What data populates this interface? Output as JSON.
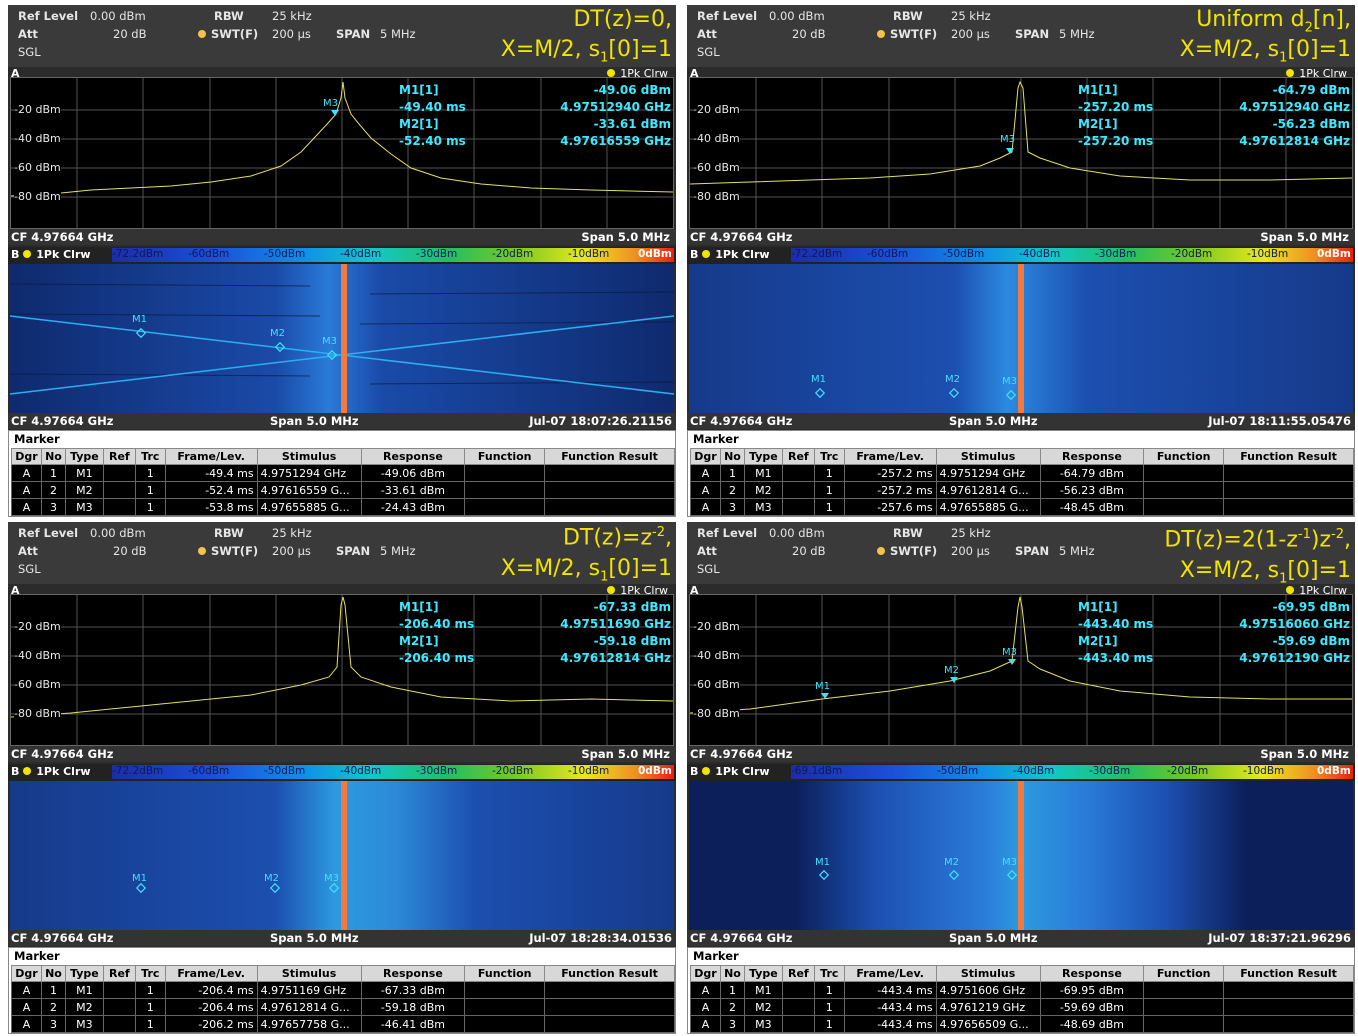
{
  "header": {
    "ref_level_label": "Ref Level",
    "ref_level_value": "0.00 dBm",
    "att_label": "Att",
    "att_value": "20 dB",
    "sgl_label": "SGL",
    "rbw_label": "RBW",
    "rbw_value": "25 kHz",
    "swt_label": "SWT(F)",
    "swt_value": "200 µs",
    "span_label": "SPAN",
    "span_value": "5 MHz"
  },
  "common": {
    "window_a": "A",
    "window_b": "B",
    "trace_label": "1Pk Clrw",
    "cf_label": "CF 4.97664 GHz",
    "span_label": "Span 5.0 MHz",
    "marker_table_title": "Marker",
    "y_labels": [
      "-20 dBm",
      "-40 dBm",
      "-60 dBm",
      "-80 dBm"
    ],
    "columns": [
      "Dgr",
      "No",
      "Type",
      "Ref",
      "Trc",
      "Frame/Lev.",
      "Stimulus",
      "Response",
      "Function",
      "Function Result"
    ]
  },
  "panels": [
    {
      "ann1": "DT(z)=0,",
      "ann2_pre": "X=M/2, s",
      "ann2_sub": "1",
      "ann2_post": "[0]=1",
      "m1_label": "M1[1]",
      "m1_time": "-49.40 ms",
      "m1_level": "-49.06 dBm",
      "m1_freq": "4.97512940 GHz",
      "m2_label": "M2[1]",
      "m2_time": "-52.40 ms",
      "m2_level": "-33.61 dBm",
      "m2_freq": "4.97616559 GHz",
      "color_scale": [
        "-72.2dBm",
        "-60dBm",
        "-50dBm",
        "-40dBm",
        "-30dBm",
        "-20dBm",
        "-10dBm",
        "0dBm"
      ],
      "timestamp": "Jul-07 18:07:26.21156",
      "rows": [
        [
          "A",
          "1",
          "M1",
          "",
          "1",
          "-49.4 ms",
          "4.9751294 GHz",
          "-49.06 dBm",
          "",
          ""
        ],
        [
          "A",
          "2",
          "M2",
          "",
          "1",
          "-52.4 ms",
          "4.97616559 G...",
          "-33.61 dBm",
          "",
          ""
        ],
        [
          "A",
          "3",
          "M3",
          "",
          "1",
          "-53.8 ms",
          "4.97655885 G...",
          "-24.43 dBm",
          "",
          ""
        ]
      ]
    },
    {
      "ann1_pre": "Uniform d",
      "ann1_sub": "2",
      "ann1_post": "[n],",
      "ann2_pre": "X=M/2, s",
      "ann2_sub": "1",
      "ann2_post": "[0]=1",
      "m1_label": "M1[1]",
      "m1_time": "-257.20 ms",
      "m1_level": "-64.79 dBm",
      "m1_freq": "4.97512940 GHz",
      "m2_label": "M2[1]",
      "m2_time": "-257.20 ms",
      "m2_level": "-56.23 dBm",
      "m2_freq": "4.97612814 GHz",
      "color_scale": [
        "-72.2dBm",
        "-60dBm",
        "-50dBm",
        "-40dBm",
        "-30dBm",
        "-20dBm",
        "-10dBm",
        "0dBm"
      ],
      "timestamp": "Jul-07 18:11:55.05476",
      "rows": [
        [
          "A",
          "1",
          "M1",
          "",
          "1",
          "-257.2 ms",
          "4.9751294 GHz",
          "-64.79 dBm",
          "",
          ""
        ],
        [
          "A",
          "2",
          "M2",
          "",
          "1",
          "-257.2 ms",
          "4.97612814 G...",
          "-56.23 dBm",
          "",
          ""
        ],
        [
          "A",
          "3",
          "M3",
          "",
          "1",
          "-257.6 ms",
          "4.97655885 G...",
          "-48.45 dBm",
          "",
          ""
        ]
      ]
    },
    {
      "ann1_pre": "DT(z)=z",
      "ann1_sup": "-2",
      "ann1_post": ",",
      "ann2_pre": "X=M/2, s",
      "ann2_sub": "1",
      "ann2_post": "[0]=1",
      "m1_label": "M1[1]",
      "m1_time": "-206.40 ms",
      "m1_level": "-67.33 dBm",
      "m1_freq": "4.97511690 GHz",
      "m2_label": "M2[1]",
      "m2_time": "-206.40 ms",
      "m2_level": "-59.18 dBm",
      "m2_freq": "4.97612814 GHz",
      "color_scale": [
        "-72.2dBm",
        "-60dBm",
        "-50dBm",
        "-40dBm",
        "-30dBm",
        "-20dBm",
        "-10dBm",
        "0dBm"
      ],
      "timestamp": "Jul-07 18:28:34.01536",
      "rows": [
        [
          "A",
          "1",
          "M1",
          "",
          "1",
          "-206.4 ms",
          "4.9751169 GHz",
          "-67.33 dBm",
          "",
          ""
        ],
        [
          "A",
          "2",
          "M2",
          "",
          "1",
          "-206.4 ms",
          "4.97612814 G...",
          "-59.18 dBm",
          "",
          ""
        ],
        [
          "A",
          "3",
          "M3",
          "",
          "1",
          "-206.2 ms",
          "4.97657758 G...",
          "-46.41 dBm",
          "",
          ""
        ]
      ]
    },
    {
      "ann1_pre": "DT(z)=2(1-z",
      "ann1_sup": "-1",
      "ann1_mid": ")z",
      "ann1_sup2": "-2",
      "ann1_post": ",",
      "ann2_pre": "X=M/2, s",
      "ann2_sub": "1",
      "ann2_post": "[0]=1",
      "m1_label": "M1[1]",
      "m1_time": "-443.40 ms",
      "m1_level": "-69.95 dBm",
      "m1_freq": "4.97516060 GHz",
      "m2_label": "M2[1]",
      "m2_time": "-443.40 ms",
      "m2_level": "-59.69 dBm",
      "m2_freq": "4.97612190 GHz",
      "color_scale": [
        "-69.1dBm",
        "-50dBm",
        "-40dBm",
        "-30dBm",
        "-20dBm",
        "-10dBm",
        "0dBm"
      ],
      "timestamp": "Jul-07 18:37:21.96296",
      "rows": [
        [
          "A",
          "1",
          "M1",
          "",
          "1",
          "-443.4 ms",
          "4.9751606 GHz",
          "-69.95 dBm",
          "",
          ""
        ],
        [
          "A",
          "2",
          "M2",
          "",
          "1",
          "-443.4 ms",
          "4.9761219 GHz",
          "-59.69 dBm",
          "",
          ""
        ],
        [
          "A",
          "3",
          "M3",
          "",
          "1",
          "-443.4 ms",
          "4.97656509 G...",
          "-48.69 dBm",
          "",
          ""
        ]
      ]
    }
  ],
  "marker_labels": [
    "M1",
    "M2",
    "M3"
  ],
  "colors": {
    "trace": "#e8e060",
    "marker": "#40e0ff",
    "annotation": "#f0e400",
    "carrier": "#f07a40"
  }
}
